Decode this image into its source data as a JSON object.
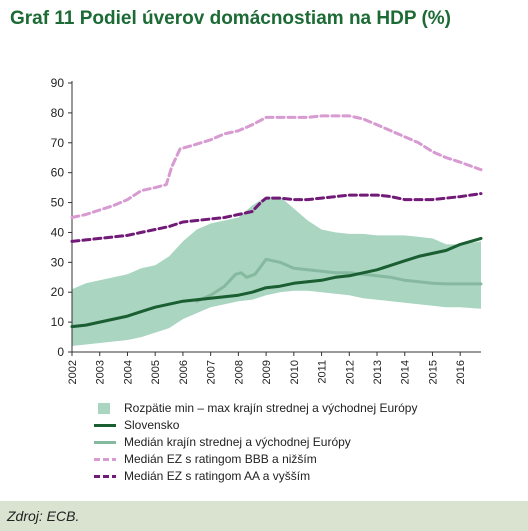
{
  "title": "Graf 11 Podiel úverov domácnostiam na HDP (%)",
  "footer": {
    "source": "Zdroj: ECB."
  },
  "colors": {
    "title": "#1c6b35",
    "band": "#a9d5c1",
    "slovensko": "#1a5e32",
    "median_cee": "#86b9a0",
    "median_bbb": "#d79ad1",
    "median_aa": "#721a77",
    "footer_bg": "#d9e3cf"
  },
  "chart_data": {
    "type": "line",
    "title": "Graf 11 Podiel úverov domácnostiam na HDP (%)",
    "xlabel": "",
    "ylabel": "",
    "xlim": [
      2002,
      2016.75
    ],
    "ylim": [
      0,
      90
    ],
    "yticks": [
      0,
      10,
      20,
      30,
      40,
      50,
      60,
      70,
      80,
      90
    ],
    "xticks": [
      "2002",
      "2003",
      "2004",
      "2005",
      "2006",
      "2007",
      "2008",
      "2009",
      "2010",
      "2011",
      "2012",
      "2013",
      "2014",
      "2015",
      "2016"
    ],
    "grid": false,
    "legend_position": "bottom",
    "band": {
      "name": "Rozpätie min – max krajín strednej a východnej Európy",
      "x": [
        2002,
        2002.5,
        2003,
        2003.5,
        2004,
        2004.5,
        2005,
        2005.5,
        2006,
        2006.5,
        2007,
        2007.5,
        2008,
        2008.5,
        2009,
        2009.5,
        2010,
        2010.5,
        2011,
        2011.5,
        2012,
        2012.5,
        2013,
        2013.5,
        2014,
        2014.5,
        2015,
        2015.5,
        2016,
        2016.75
      ],
      "low": [
        2,
        2.5,
        3,
        3.5,
        4,
        5,
        6.5,
        8,
        11,
        13,
        15,
        16,
        17,
        17.5,
        19,
        20,
        20.5,
        20.5,
        20,
        19.5,
        19,
        18,
        17.5,
        17,
        16.5,
        16,
        15.5,
        15,
        15,
        14.5
      ],
      "high": [
        21,
        23,
        24,
        25,
        26,
        28,
        29,
        32,
        37,
        41,
        43,
        44,
        45,
        49,
        52,
        52,
        48,
        44,
        41,
        40,
        39.5,
        39.5,
        39,
        39,
        39,
        38.5,
        38,
        36,
        36,
        37
      ]
    },
    "series": [
      {
        "name": "Slovensko",
        "style": "solid",
        "x": [
          2002,
          2002.5,
          2003,
          2003.5,
          2004,
          2004.5,
          2005,
          2005.5,
          2006,
          2006.5,
          2007,
          2007.5,
          2008,
          2008.5,
          2009,
          2009.5,
          2010,
          2010.5,
          2011,
          2011.5,
          2012,
          2012.5,
          2013,
          2013.5,
          2014,
          2014.5,
          2015,
          2015.5,
          2016,
          2016.75
        ],
        "values": [
          8.5,
          9,
          10,
          11,
          12,
          13.5,
          15,
          16,
          17,
          17.5,
          18,
          18.5,
          19,
          20,
          21.5,
          22,
          23,
          23.5,
          24,
          25,
          25.5,
          26.5,
          27.5,
          29,
          30.5,
          32,
          33,
          34,
          36,
          38
        ]
      },
      {
        "name": "Medián krajín strednej a východnej Európy",
        "style": "solid",
        "x": [
          2006.5,
          2007,
          2007.5,
          2007.9,
          2008.1,
          2008.3,
          2008.6,
          2009,
          2009.5,
          2010,
          2010.5,
          2011,
          2011.5,
          2012,
          2012.5,
          2013,
          2013.5,
          2014,
          2014.5,
          2015,
          2015.5,
          2016,
          2016.75
        ],
        "values": [
          17,
          19,
          22,
          26,
          26.5,
          25,
          26,
          31,
          30,
          28,
          27.5,
          27,
          26.5,
          26.5,
          26,
          25.5,
          25,
          24,
          23.5,
          23,
          22.8,
          22.8,
          22.8
        ]
      },
      {
        "name": "Medián EZ s ratingom BBB a nižším",
        "style": "dashed",
        "x": [
          2002,
          2002.5,
          2003,
          2003.5,
          2004,
          2004.5,
          2005,
          2005.4,
          2005.6,
          2005.9,
          2006.3,
          2007,
          2007.5,
          2008,
          2008.5,
          2009,
          2009.5,
          2010,
          2010.5,
          2011,
          2011.5,
          2012,
          2012.5,
          2013,
          2013.5,
          2014,
          2014.5,
          2015,
          2015.5,
          2016,
          2016.75
        ],
        "values": [
          45,
          46,
          47.5,
          49,
          51,
          54,
          55,
          56,
          62,
          68,
          69,
          71,
          73,
          74,
          76,
          78.5,
          78.5,
          78.5,
          78.5,
          79,
          79,
          79,
          78,
          76,
          74,
          72,
          70,
          67,
          65,
          63.5,
          61
        ]
      },
      {
        "name": "Medián EZ s ratingom AA a vyšším",
        "style": "dashed",
        "x": [
          2002,
          2002.5,
          2003,
          2003.5,
          2004,
          2004.5,
          2005,
          2005.5,
          2006,
          2006.5,
          2007,
          2007.5,
          2008,
          2008.5,
          2008.8,
          2009,
          2009.5,
          2010,
          2010.5,
          2011,
          2011.5,
          2012,
          2012.5,
          2013,
          2013.5,
          2014,
          2014.5,
          2015,
          2015.5,
          2016,
          2016.75
        ],
        "values": [
          37,
          37.5,
          38,
          38.5,
          39,
          40,
          41,
          42,
          43.5,
          44,
          44.5,
          45,
          46,
          47,
          50,
          51.5,
          51.5,
          51,
          51,
          51.5,
          52,
          52.5,
          52.5,
          52.5,
          52,
          51,
          51,
          51,
          51.5,
          52,
          53
        ]
      }
    ]
  },
  "legend": [
    {
      "key": "band",
      "label": "Rozpätie min – max krajín strednej a východnej Európy",
      "swatch": "band-swatch"
    },
    {
      "key": "slovensko",
      "label": "Slovensko",
      "swatch": "solid-line"
    },
    {
      "key": "median_cee",
      "label": "Medián krajín strednej a východnej Európy",
      "swatch": "solid-line"
    },
    {
      "key": "median_bbb",
      "label": "Medián EZ s ratingom BBB a nižším",
      "swatch": "dashed-line"
    },
    {
      "key": "median_aa",
      "label": "Medián EZ s ratingom AA a vyšším",
      "swatch": "dashed-line"
    }
  ]
}
